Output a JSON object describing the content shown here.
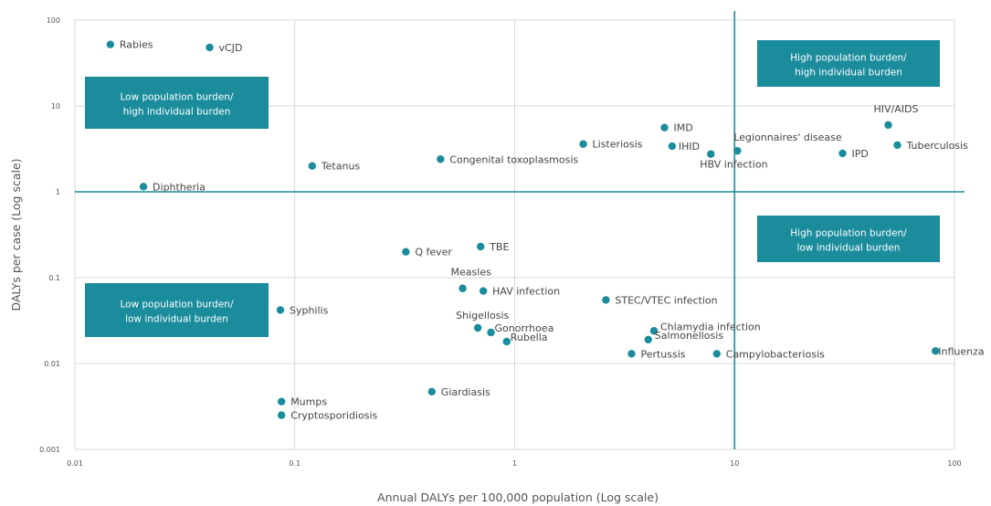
{
  "chart_data": {
    "type": "scatter",
    "title": "",
    "xlabel": "Annual DALYs per 100,000 population (Log scale)",
    "ylabel": "DALYs per case (Log scale)",
    "xscale": "log",
    "yscale": "log",
    "xlim": [
      0.01,
      100
    ],
    "ylim": [
      0.001,
      100
    ],
    "grid": true,
    "x_ticks": [
      "0.01",
      "0.1",
      "1",
      "10",
      "100"
    ],
    "y_ticks": [
      "0.001",
      "0.01",
      "0.1",
      "1",
      "10",
      "100"
    ],
    "marker_color": "#1a8c9c",
    "reference_lines": {
      "x": 10,
      "y": 1,
      "color": "#1a8c9c"
    },
    "quadrant_color": "#1a8c9c",
    "quadrants": [
      {
        "id": "high-high",
        "lines": [
          "High population burden/",
          "high individual burden"
        ]
      },
      {
        "id": "low-high",
        "lines": [
          "Low population burden/",
          "high individual burden"
        ]
      },
      {
        "id": "high-low",
        "lines": [
          "High population burden/",
          "low individual burden"
        ]
      },
      {
        "id": "low-low",
        "lines": [
          "Low population burden/",
          "low individual burden"
        ]
      }
    ],
    "points": [
      {
        "label": "Rabies",
        "x": 0.0145,
        "y": 52
      },
      {
        "label": "vCJD",
        "x": 0.041,
        "y": 48
      },
      {
        "label": "Diphtheria",
        "x": 0.0205,
        "y": 1.15
      },
      {
        "label": "Tetanus",
        "x": 0.12,
        "y": 2.0
      },
      {
        "label": "Congenital toxoplasmosis",
        "x": 0.46,
        "y": 2.4
      },
      {
        "label": "Listeriosis",
        "x": 2.05,
        "y": 3.6
      },
      {
        "label": "IMD",
        "x": 4.8,
        "y": 5.6
      },
      {
        "label": "IHID",
        "x": 5.2,
        "y": 3.4
      },
      {
        "label": "Legionnaires' disease",
        "x": 10.3,
        "y": 3.0
      },
      {
        "label": "HBV infection",
        "x": 7.8,
        "y": 2.75
      },
      {
        "label": "IPD",
        "x": 31,
        "y": 2.8
      },
      {
        "label": "HIV/AIDS",
        "x": 50,
        "y": 6.0
      },
      {
        "label": "Tuberculosis",
        "x": 55,
        "y": 3.5
      },
      {
        "label": "Q fever",
        "x": 0.32,
        "y": 0.2
      },
      {
        "label": "TBE",
        "x": 0.7,
        "y": 0.23
      },
      {
        "label": "Measles",
        "x": 0.58,
        "y": 0.075
      },
      {
        "label": "HAV infection",
        "x": 0.72,
        "y": 0.07
      },
      {
        "label": "STEC/VTEC infection",
        "x": 2.6,
        "y": 0.055
      },
      {
        "label": "Syphilis",
        "x": 0.086,
        "y": 0.042
      },
      {
        "label": "Shigellosis",
        "x": 0.68,
        "y": 0.026
      },
      {
        "label": "Gonorrhoea",
        "x": 0.78,
        "y": 0.023
      },
      {
        "label": "Rubella",
        "x": 0.92,
        "y": 0.018
      },
      {
        "label": "Chlamydia infection",
        "x": 4.3,
        "y": 0.024
      },
      {
        "label": "Salmonellosis",
        "x": 4.05,
        "y": 0.019
      },
      {
        "label": "Pertussis",
        "x": 3.4,
        "y": 0.013
      },
      {
        "label": "Campylobacteriosis",
        "x": 8.3,
        "y": 0.013
      },
      {
        "label": "Influenza",
        "x": 82,
        "y": 0.014
      },
      {
        "label": "Giardiasis",
        "x": 0.42,
        "y": 0.0047
      },
      {
        "label": "Mumps",
        "x": 0.087,
        "y": 0.0036
      },
      {
        "label": "Cryptosporidiosis",
        "x": 0.087,
        "y": 0.0025
      }
    ]
  }
}
